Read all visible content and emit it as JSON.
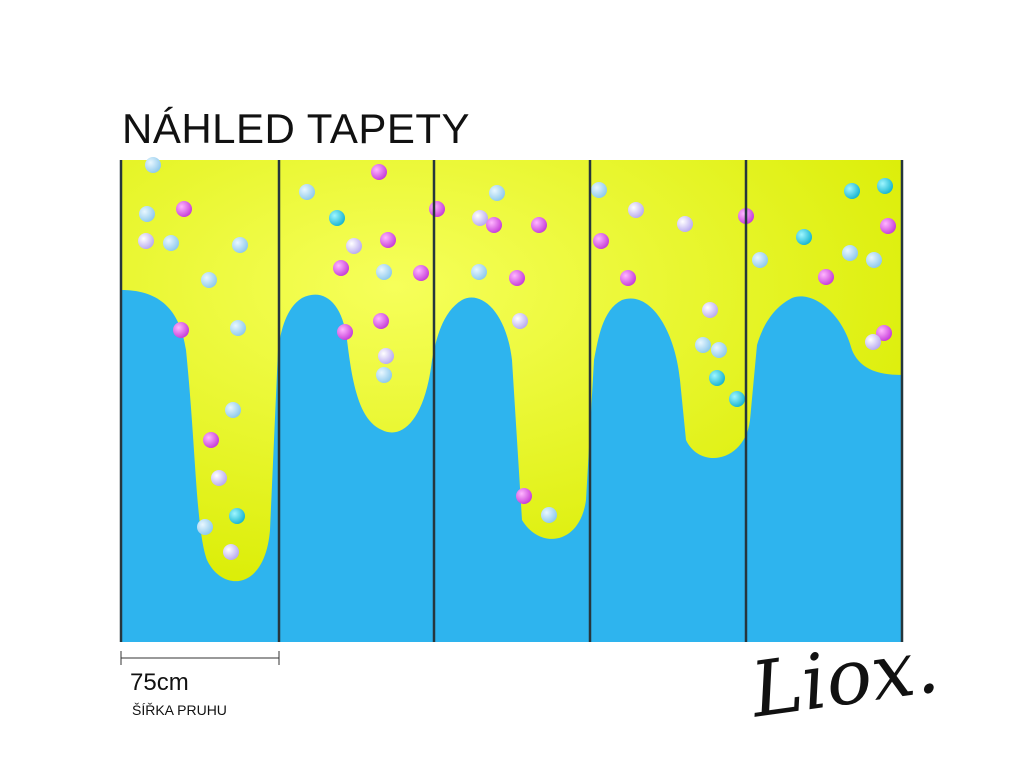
{
  "header": {
    "title": "NÁHLED TAPETY"
  },
  "dimension": {
    "width": "75cm",
    "label": "ŠÍŘKA PRUHU"
  },
  "logo": "Liox."
}
